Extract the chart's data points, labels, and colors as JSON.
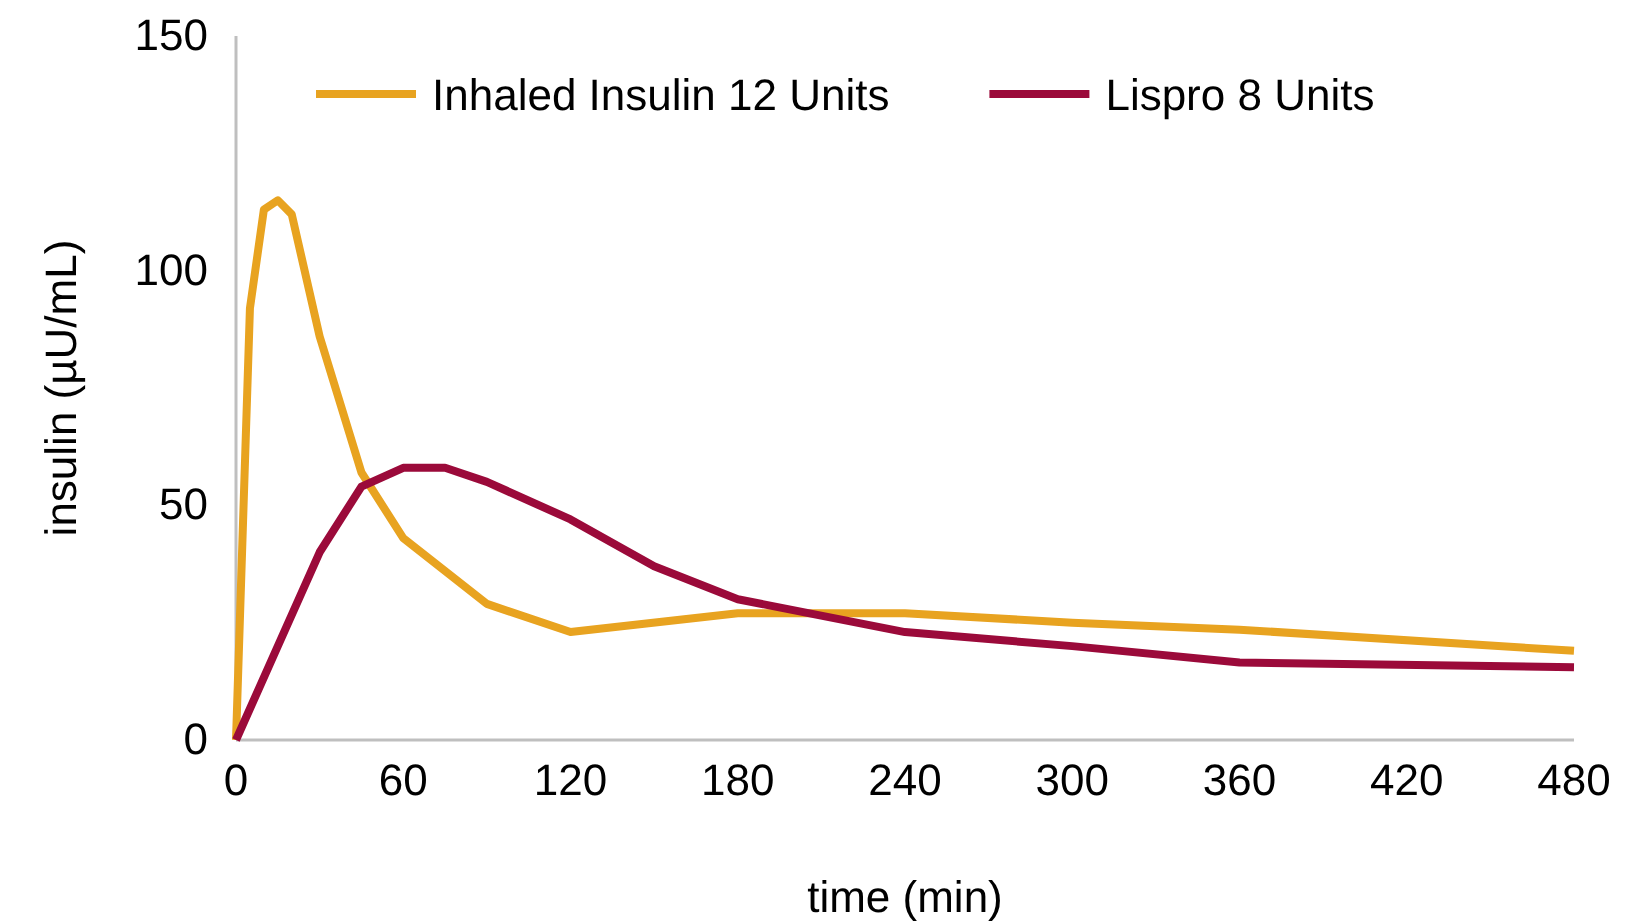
{
  "chart_data": {
    "type": "line",
    "xlabel": "time (min)",
    "ylabel": "insulin (µU/mL)",
    "xlim": [
      0,
      480
    ],
    "xticks": [
      0,
      60,
      120,
      180,
      240,
      300,
      360,
      420,
      480
    ],
    "ylim": [
      0,
      150
    ],
    "yticks": [
      0,
      50,
      100,
      150
    ],
    "legend": "top",
    "marker": "none",
    "line_style": "solid",
    "series": [
      {
        "name": "Inhaled Insulin 12 Units",
        "color": "#e8a320",
        "x": [
          0,
          5,
          10,
          15,
          20,
          30,
          45,
          60,
          90,
          120,
          180,
          240,
          300,
          360,
          480
        ],
        "values": [
          0,
          92,
          113,
          115,
          112,
          86,
          57,
          43,
          29,
          23,
          27,
          27,
          25,
          23.5,
          19
        ]
      },
      {
        "name": "Lispro 8 Units",
        "color": "#9b0a3a",
        "x": [
          0,
          15,
          30,
          45,
          60,
          75,
          90,
          120,
          150,
          180,
          240,
          300,
          360,
          480
        ],
        "values": [
          0,
          20,
          40,
          54,
          58,
          58,
          55,
          47,
          37,
          30,
          23,
          20,
          16.5,
          15.5
        ]
      }
    ]
  }
}
